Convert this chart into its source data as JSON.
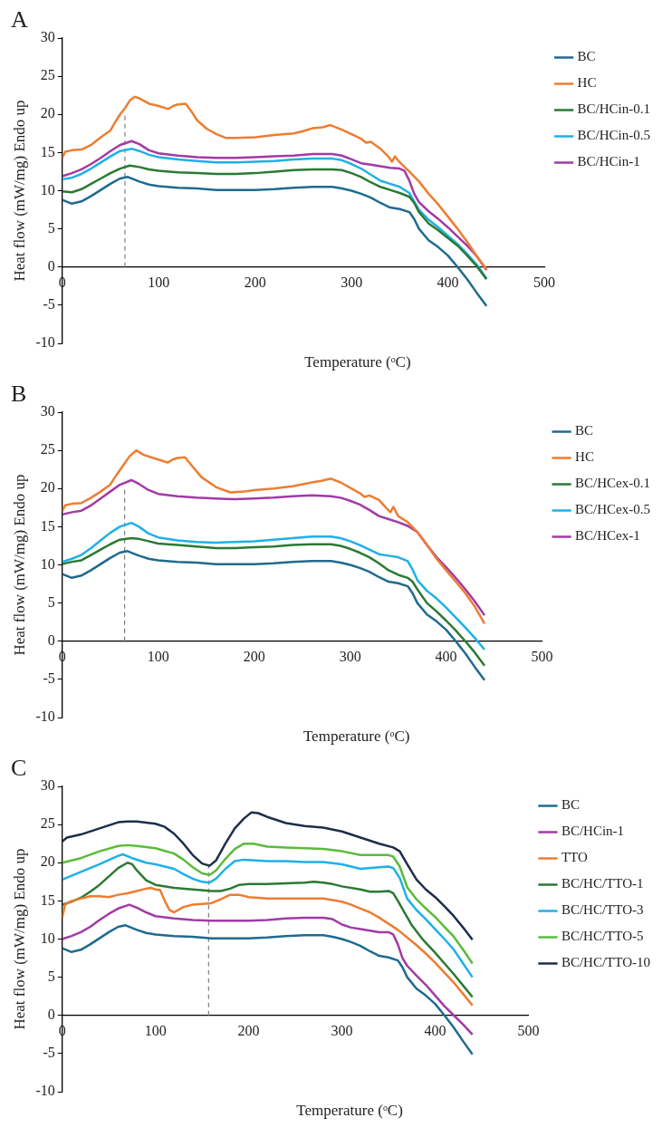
{
  "chart_data": [
    {
      "type": "line",
      "title": "A",
      "xlabel": "Temperature (ᵒC)",
      "ylabel": "Heat flow (mW/mg) Endo up",
      "xlim": [
        0,
        500
      ],
      "ylim": [
        -10,
        30
      ],
      "xticks": [
        0,
        100,
        200,
        300,
        400,
        500
      ],
      "yticks": [
        -10,
        -5,
        0,
        5,
        10,
        15,
        20,
        25,
        30
      ],
      "legend": "right",
      "ref_lines": [
        {
          "axis": "x",
          "value": 65,
          "color": "#808080",
          "line_style": "dashed"
        }
      ],
      "series": [
        {
          "name": "BC",
          "color": "#1f6b8e",
          "x": [
            0,
            10,
            20,
            30,
            40,
            50,
            60,
            68,
            80,
            90,
            100,
            120,
            140,
            160,
            180,
            200,
            220,
            240,
            260,
            280,
            290,
            300,
            310,
            320,
            330,
            340,
            350,
            360,
            365,
            370,
            380,
            390,
            400,
            410,
            420,
            430,
            440
          ],
          "values": [
            8.8,
            8.3,
            8.6,
            9.3,
            10.1,
            10.9,
            11.6,
            11.8,
            11.2,
            10.8,
            10.6,
            10.4,
            10.3,
            10.1,
            10.1,
            10.1,
            10.2,
            10.4,
            10.5,
            10.5,
            10.3,
            10.0,
            9.6,
            9.1,
            8.4,
            7.8,
            7.6,
            7.2,
            6.3,
            5.0,
            3.5,
            2.6,
            1.5,
            0,
            -1.6,
            -3.4,
            -5.1
          ]
        },
        {
          "name": "HC",
          "color": "#ed7d31",
          "x": [
            0,
            3,
            10,
            20,
            30,
            40,
            50,
            55,
            60,
            65,
            70,
            75,
            80,
            90,
            100,
            110,
            115,
            120,
            128,
            135,
            140,
            150,
            160,
            170,
            180,
            200,
            220,
            240,
            250,
            260,
            270,
            278,
            290,
            300,
            310,
            315,
            320,
            330,
            338,
            342,
            345,
            348,
            355,
            360,
            370,
            380,
            390,
            400,
            410,
            420,
            430,
            440
          ],
          "values": [
            14.3,
            15.1,
            15.3,
            15.4,
            16.0,
            17.0,
            17.9,
            19.0,
            20.0,
            20.8,
            21.8,
            22.3,
            22.1,
            21.4,
            21.1,
            20.7,
            21.1,
            21.3,
            21.4,
            20.2,
            19.2,
            18.1,
            17.4,
            16.9,
            16.9,
            17.0,
            17.3,
            17.5,
            17.8,
            18.2,
            18.3,
            18.6,
            18.0,
            17.4,
            16.8,
            16.3,
            16.4,
            15.5,
            14.5,
            13.8,
            14.5,
            14.0,
            13.1,
            12.5,
            11.2,
            9.6,
            8.2,
            6.6,
            5.0,
            3.3,
            1.4,
            -0.3
          ]
        },
        {
          "name": "BC/HCin-0.1",
          "color": "#2a7a33",
          "x": [
            0,
            10,
            20,
            30,
            40,
            50,
            60,
            70,
            80,
            90,
            100,
            120,
            140,
            160,
            180,
            200,
            220,
            240,
            260,
            280,
            290,
            300,
            310,
            320,
            330,
            340,
            350,
            360,
            365,
            370,
            380,
            390,
            400,
            410,
            420,
            430,
            440
          ],
          "values": [
            9.9,
            9.8,
            10.2,
            10.9,
            11.6,
            12.3,
            12.9,
            13.3,
            13.1,
            12.8,
            12.6,
            12.4,
            12.3,
            12.2,
            12.2,
            12.3,
            12.5,
            12.7,
            12.8,
            12.8,
            12.7,
            12.3,
            11.8,
            11.1,
            10.5,
            10.1,
            9.7,
            9.2,
            8.4,
            7.2,
            5.7,
            4.8,
            3.8,
            2.8,
            1.5,
            0.1,
            -1.6
          ]
        },
        {
          "name": "BC/HCin-0.5",
          "color": "#1fb0e8",
          "x": [
            0,
            10,
            20,
            30,
            40,
            50,
            60,
            72,
            80,
            90,
            100,
            120,
            140,
            160,
            180,
            200,
            220,
            240,
            260,
            280,
            290,
            300,
            310,
            320,
            330,
            340,
            350,
            360,
            370,
            380,
            390,
            400,
            410,
            420,
            430,
            440
          ],
          "values": [
            11.5,
            11.7,
            12.2,
            12.9,
            13.7,
            14.5,
            15.2,
            15.5,
            15.2,
            14.7,
            14.4,
            14.1,
            13.9,
            13.7,
            13.7,
            13.8,
            13.9,
            14.1,
            14.2,
            14.2,
            14.0,
            13.5,
            12.9,
            12.1,
            11.3,
            10.9,
            10.5,
            9.7,
            7.5,
            6.2,
            5.2,
            4.1,
            3.0,
            1.7,
            0.3,
            -1.5
          ]
        },
        {
          "name": "BC/HCin-1",
          "color": "#a23aa6",
          "x": [
            0,
            10,
            20,
            30,
            40,
            50,
            60,
            72,
            80,
            90,
            100,
            120,
            140,
            160,
            180,
            200,
            220,
            240,
            260,
            280,
            290,
            300,
            310,
            320,
            340,
            350,
            355,
            360,
            365,
            370,
            380,
            390,
            400,
            410,
            420,
            430,
            440
          ],
          "values": [
            11.9,
            12.3,
            12.8,
            13.5,
            14.3,
            15.2,
            16.0,
            16.5,
            16.1,
            15.3,
            14.9,
            14.6,
            14.4,
            14.3,
            14.3,
            14.4,
            14.5,
            14.6,
            14.8,
            14.8,
            14.6,
            14.1,
            13.6,
            13.4,
            13.0,
            12.9,
            12.6,
            11.3,
            9.6,
            8.5,
            7.3,
            6.3,
            5.2,
            4.0,
            2.8,
            1.4,
            -0.4
          ]
        }
      ]
    },
    {
      "type": "line",
      "title": "B",
      "xlabel": "Temperature (ᵒC)",
      "ylabel": "Heat flow (mW/mg) Endo up",
      "xlim": [
        0,
        500
      ],
      "ylim": [
        -10,
        30
      ],
      "xticks": [
        0,
        100,
        200,
        300,
        400,
        500
      ],
      "yticks": [
        -10,
        -5,
        0,
        5,
        10,
        15,
        20,
        25,
        30
      ],
      "legend": "right",
      "ref_lines": [
        {
          "axis": "x",
          "value": 65,
          "color": "#808080",
          "line_style": "dashed"
        }
      ],
      "series": [
        {
          "name": "BC",
          "color": "#1f6b8e",
          "x": [
            0,
            10,
            20,
            30,
            40,
            50,
            60,
            68,
            80,
            90,
            100,
            120,
            140,
            160,
            180,
            200,
            220,
            240,
            260,
            280,
            290,
            300,
            310,
            320,
            330,
            340,
            350,
            360,
            365,
            370,
            380,
            390,
            400,
            410,
            420,
            430,
            440
          ],
          "values": [
            8.8,
            8.3,
            8.6,
            9.3,
            10.1,
            10.9,
            11.6,
            11.8,
            11.2,
            10.8,
            10.6,
            10.4,
            10.3,
            10.1,
            10.1,
            10.1,
            10.2,
            10.4,
            10.5,
            10.5,
            10.3,
            10.0,
            9.6,
            9.1,
            8.4,
            7.8,
            7.6,
            7.2,
            6.3,
            5.0,
            3.5,
            2.6,
            1.5,
            0,
            -1.6,
            -3.4,
            -5.1
          ]
        },
        {
          "name": "HC",
          "color": "#ed7d31",
          "x": [
            0,
            3,
            10,
            20,
            30,
            40,
            50,
            55,
            60,
            65,
            70,
            77,
            85,
            100,
            110,
            115,
            120,
            128,
            135,
            145,
            160,
            175,
            190,
            200,
            220,
            240,
            260,
            270,
            280,
            290,
            300,
            310,
            315,
            320,
            330,
            338,
            342,
            345,
            350,
            360,
            370,
            380,
            390,
            400,
            410,
            420,
            430,
            440
          ],
          "values": [
            17.0,
            17.8,
            18.0,
            18.1,
            18.8,
            19.6,
            20.5,
            21.5,
            22.4,
            23.3,
            24.2,
            25.0,
            24.4,
            23.8,
            23.4,
            23.8,
            24.0,
            24.1,
            23.0,
            21.5,
            20.2,
            19.5,
            19.6,
            19.8,
            20.0,
            20.3,
            20.8,
            21.0,
            21.3,
            20.8,
            20.1,
            19.4,
            18.9,
            19.1,
            18.5,
            17.4,
            16.9,
            17.6,
            16.4,
            15.6,
            14.3,
            12.6,
            10.8,
            9.3,
            7.8,
            6.3,
            4.5,
            2.3
          ]
        },
        {
          "name": "BC/HCex-0.1",
          "color": "#2a7a33",
          "x": [
            0,
            10,
            20,
            30,
            40,
            50,
            60,
            72,
            80,
            90,
            100,
            120,
            140,
            160,
            180,
            200,
            220,
            240,
            260,
            280,
            290,
            300,
            310,
            320,
            330,
            340,
            350,
            360,
            365,
            370,
            380,
            390,
            400,
            410,
            420,
            430,
            440
          ],
          "values": [
            10.1,
            10.4,
            10.6,
            11.3,
            12.0,
            12.7,
            13.3,
            13.5,
            13.4,
            13.1,
            12.8,
            12.6,
            12.4,
            12.2,
            12.2,
            12.3,
            12.4,
            12.6,
            12.7,
            12.7,
            12.5,
            12.1,
            11.6,
            11.0,
            10.2,
            9.3,
            8.7,
            8.3,
            7.8,
            6.8,
            5.0,
            3.9,
            2.7,
            1.4,
            0.0,
            -1.5,
            -3.2
          ]
        },
        {
          "name": "BC/HCex-0.5",
          "color": "#1fb0e8",
          "x": [
            0,
            10,
            20,
            30,
            40,
            50,
            60,
            72,
            80,
            90,
            100,
            120,
            140,
            160,
            180,
            200,
            220,
            240,
            260,
            280,
            290,
            300,
            310,
            320,
            330,
            340,
            350,
            360,
            365,
            370,
            380,
            390,
            400,
            410,
            420,
            430,
            440
          ],
          "values": [
            10.4,
            10.8,
            11.3,
            12.2,
            13.2,
            14.2,
            15.0,
            15.5,
            15.0,
            14.1,
            13.6,
            13.2,
            13.0,
            12.9,
            13.0,
            13.1,
            13.3,
            13.5,
            13.7,
            13.7,
            13.5,
            13.1,
            12.6,
            12.0,
            11.4,
            11.2,
            11.0,
            10.5,
            9.4,
            8.0,
            6.6,
            5.6,
            4.4,
            3.1,
            1.8,
            0.4,
            -1.1
          ]
        },
        {
          "name": "BC/HCex-1",
          "color": "#a23aa6",
          "x": [
            0,
            10,
            20,
            30,
            40,
            50,
            60,
            72,
            80,
            90,
            100,
            120,
            140,
            160,
            180,
            200,
            220,
            240,
            260,
            280,
            290,
            300,
            310,
            320,
            330,
            340,
            350,
            360,
            370,
            380,
            390,
            400,
            410,
            420,
            430,
            440
          ],
          "values": [
            16.6,
            16.9,
            17.1,
            17.8,
            18.7,
            19.6,
            20.5,
            21.1,
            20.6,
            19.8,
            19.3,
            19.0,
            18.8,
            18.7,
            18.6,
            18.7,
            18.8,
            19.0,
            19.1,
            19.0,
            18.8,
            18.4,
            17.9,
            17.2,
            16.4,
            16.0,
            15.6,
            15.1,
            14.3,
            12.6,
            11.0,
            9.7,
            8.3,
            6.8,
            5.2,
            3.4
          ]
        }
      ]
    },
    {
      "type": "line",
      "title": "C",
      "xlabel": "Temperature (ᵒC)",
      "ylabel": "Heat flow (mW/mg) Endo up",
      "xlim": [
        0,
        500
      ],
      "ylim": [
        -10,
        30
      ],
      "xticks": [
        0,
        100,
        200,
        300,
        400,
        500
      ],
      "yticks": [
        -10,
        -5,
        0,
        5,
        10,
        15,
        20,
        25,
        30
      ],
      "legend": "right",
      "ref_lines": [
        {
          "axis": "x",
          "value": 157,
          "color": "#808080",
          "line_style": "dashed"
        }
      ],
      "series": [
        {
          "name": "BC",
          "color": "#1f6b8e",
          "x": [
            0,
            10,
            20,
            30,
            40,
            50,
            60,
            68,
            80,
            90,
            100,
            120,
            140,
            160,
            180,
            200,
            220,
            240,
            260,
            280,
            290,
            300,
            310,
            320,
            330,
            340,
            350,
            360,
            365,
            370,
            380,
            390,
            400,
            410,
            420,
            430,
            440
          ],
          "values": [
            8.8,
            8.3,
            8.6,
            9.3,
            10.1,
            10.9,
            11.6,
            11.8,
            11.2,
            10.8,
            10.6,
            10.4,
            10.3,
            10.1,
            10.1,
            10.1,
            10.2,
            10.4,
            10.5,
            10.5,
            10.3,
            10.0,
            9.6,
            9.1,
            8.4,
            7.8,
            7.6,
            7.2,
            6.3,
            5.0,
            3.5,
            2.6,
            1.5,
            0,
            -1.6,
            -3.4,
            -5.1
          ]
        },
        {
          "name": "BC/HCin-1",
          "color": "#a23aa6",
          "x": [
            0,
            10,
            20,
            30,
            40,
            50,
            60,
            72,
            80,
            90,
            100,
            120,
            140,
            160,
            180,
            200,
            220,
            240,
            260,
            280,
            290,
            300,
            310,
            320,
            330,
            340,
            350,
            355,
            360,
            365,
            370,
            380,
            390,
            400,
            410,
            420,
            430,
            440
          ],
          "values": [
            10.0,
            10.4,
            10.9,
            11.6,
            12.5,
            13.3,
            14.0,
            14.5,
            14.1,
            13.5,
            13.0,
            12.7,
            12.5,
            12.4,
            12.4,
            12.4,
            12.5,
            12.7,
            12.8,
            12.8,
            12.6,
            11.9,
            11.5,
            11.3,
            11.1,
            10.9,
            10.9,
            10.6,
            9.3,
            7.5,
            6.5,
            5.2,
            4.0,
            2.6,
            1.2,
            0.0,
            -1.2,
            -2.5
          ]
        },
        {
          "name": "TTO",
          "color": "#ed7d31",
          "x": [
            0,
            3,
            10,
            20,
            30,
            40,
            50,
            60,
            70,
            80,
            90,
            95,
            100,
            105,
            110,
            115,
            120,
            130,
            140,
            150,
            160,
            170,
            180,
            190,
            200,
            220,
            240,
            260,
            280,
            290,
            300,
            310,
            320,
            330,
            340,
            350,
            360,
            370,
            380,
            390,
            400,
            410,
            420,
            430,
            440
          ],
          "values": [
            12.8,
            14.5,
            15.0,
            15.3,
            15.6,
            15.6,
            15.5,
            15.8,
            16.0,
            16.3,
            16.6,
            16.7,
            16.5,
            16.4,
            15.0,
            13.8,
            13.5,
            14.2,
            14.5,
            14.6,
            14.7,
            15.2,
            15.8,
            15.8,
            15.5,
            15.3,
            15.3,
            15.3,
            15.3,
            15.1,
            14.9,
            14.5,
            14.0,
            13.5,
            12.8,
            12.0,
            11.2,
            10.2,
            9.2,
            8.1,
            6.9,
            5.6,
            4.3,
            2.8,
            1.3
          ]
        },
        {
          "name": "BC/HC/TTO-1",
          "color": "#2a7a33",
          "x": [
            0,
            10,
            20,
            30,
            40,
            50,
            60,
            70,
            75,
            80,
            90,
            100,
            120,
            140,
            160,
            170,
            180,
            190,
            200,
            220,
            240,
            260,
            270,
            280,
            290,
            300,
            320,
            330,
            340,
            350,
            355,
            360,
            367,
            375,
            385,
            390,
            400,
            410,
            420,
            430,
            440
          ],
          "values": [
            14.5,
            14.9,
            15.4,
            16.2,
            17.1,
            18.2,
            19.3,
            20.0,
            19.8,
            19.0,
            17.7,
            17.1,
            16.7,
            16.5,
            16.3,
            16.3,
            16.6,
            17.1,
            17.2,
            17.2,
            17.3,
            17.4,
            17.5,
            17.4,
            17.2,
            16.9,
            16.5,
            16.2,
            16.2,
            16.3,
            16.0,
            15.0,
            13.5,
            11.8,
            10.2,
            9.5,
            8.2,
            6.8,
            5.4,
            3.9,
            2.4
          ]
        },
        {
          "name": "BC/HC/TTO-3",
          "color": "#1fb0e8",
          "x": [
            0,
            10,
            20,
            40,
            60,
            65,
            75,
            90,
            100,
            120,
            130,
            140,
            150,
            158,
            165,
            175,
            185,
            195,
            220,
            240,
            260,
            280,
            300,
            320,
            340,
            350,
            355,
            362,
            370,
            380,
            390,
            400,
            410,
            420,
            430,
            440
          ],
          "values": [
            17.8,
            18.3,
            18.8,
            19.8,
            20.9,
            21.1,
            20.6,
            20.0,
            19.8,
            19.2,
            18.5,
            17.9,
            17.5,
            17.4,
            17.9,
            19.2,
            20.2,
            20.4,
            20.2,
            20.2,
            20.1,
            20.1,
            19.8,
            19.2,
            19.4,
            19.5,
            19.3,
            18.0,
            15.3,
            13.8,
            12.6,
            11.3,
            10.0,
            8.6,
            6.8,
            5.0
          ]
        },
        {
          "name": "BC/HC/TTO-5",
          "color": "#5bbb3a",
          "x": [
            0,
            20,
            40,
            60,
            70,
            80,
            100,
            120,
            130,
            140,
            150,
            158,
            165,
            175,
            185,
            195,
            205,
            220,
            240,
            260,
            280,
            300,
            320,
            340,
            350,
            355,
            362,
            370,
            380,
            390,
            400,
            410,
            420,
            430,
            440
          ],
          "values": [
            20.0,
            20.6,
            21.5,
            22.2,
            22.3,
            22.2,
            21.9,
            21.2,
            20.4,
            19.4,
            18.6,
            18.4,
            19.0,
            20.5,
            21.8,
            22.5,
            22.5,
            22.1,
            22.0,
            21.9,
            21.8,
            21.5,
            21.0,
            21.0,
            21.0,
            20.8,
            19.5,
            16.8,
            15.2,
            14.0,
            12.9,
            11.6,
            10.3,
            8.6,
            6.8
          ]
        },
        {
          "name": "BC/HC/TTO-10",
          "color": "#1c2e4a",
          "x": [
            0,
            5,
            20,
            40,
            60,
            70,
            80,
            100,
            110,
            120,
            130,
            140,
            150,
            158,
            165,
            175,
            185,
            195,
            203,
            210,
            220,
            240,
            260,
            280,
            300,
            320,
            340,
            355,
            362,
            370,
            380,
            390,
            400,
            410,
            420,
            430,
            440
          ],
          "values": [
            22.8,
            23.3,
            23.7,
            24.5,
            25.3,
            25.4,
            25.4,
            25.1,
            24.7,
            23.8,
            22.5,
            21.0,
            19.9,
            19.6,
            20.3,
            22.5,
            24.5,
            25.8,
            26.6,
            26.5,
            26.0,
            25.2,
            24.8,
            24.6,
            24.1,
            23.3,
            22.5,
            22.0,
            21.5,
            19.8,
            17.8,
            16.5,
            15.5,
            14.3,
            13.0,
            11.5,
            9.9
          ]
        }
      ]
    }
  ]
}
